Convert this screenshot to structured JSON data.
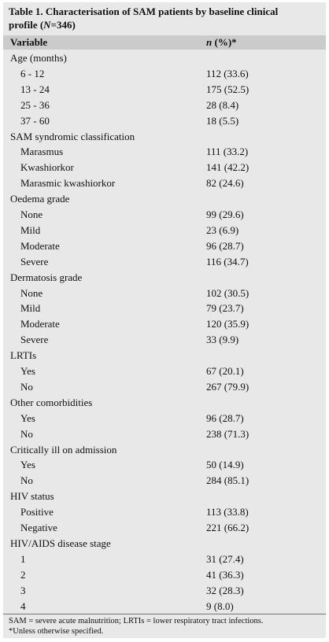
{
  "title": [
    "Table 1. Characterisation of SAM patients by baseline clinical profile (",
    "N",
    "=346)"
  ],
  "table": {
    "header": [
      [
        "Variable"
      ],
      [
        "n",
        " (%)*"
      ]
    ],
    "groups": [
      {
        "label": "Age (months)",
        "rows": [
          [
            "6 - 12",
            "112 (33.6)"
          ],
          [
            "13 - 24",
            "175 (52.5)"
          ],
          [
            "25 - 36",
            "28 (8.4)"
          ],
          [
            "37 - 60",
            "18 (5.5)"
          ]
        ]
      },
      {
        "label": "SAM syndromic classification",
        "rows": [
          [
            "Marasmus",
            "111 (33.2)"
          ],
          [
            "Kwashiorkor",
            "141 (42.2)"
          ],
          [
            "Marasmic kwashiorkor",
            "82 (24.6)"
          ]
        ]
      },
      {
        "label": "Oedema grade",
        "rows": [
          [
            "None",
            "99 (29.6)"
          ],
          [
            "Mild",
            "23 (6.9)"
          ],
          [
            "Moderate",
            "96 (28.7)"
          ],
          [
            "Severe",
            "116 (34.7)"
          ]
        ]
      },
      {
        "label": "Dermatosis grade",
        "rows": [
          [
            "None",
            "102 (30.5)"
          ],
          [
            "Mild",
            "79 (23.7)"
          ],
          [
            "Moderate",
            "120 (35.9)"
          ],
          [
            "Severe",
            "33 (9.9)"
          ]
        ]
      },
      {
        "label": "LRTIs",
        "rows": [
          [
            "Yes",
            "67 (20.1)"
          ],
          [
            "No",
            "267 (79.9)"
          ]
        ]
      },
      {
        "label": "Other comorbidities",
        "rows": [
          [
            "Yes",
            "96 (28.7)"
          ],
          [
            "No",
            "238 (71.3)"
          ]
        ]
      },
      {
        "label": "Critically ill on admission",
        "rows": [
          [
            "Yes",
            "50 (14.9)"
          ],
          [
            "No",
            "284 (85.1)"
          ]
        ]
      },
      {
        "label": "HIV status",
        "rows": [
          [
            "Positive",
            "113 (33.8)"
          ],
          [
            "Negative",
            "221 (66.2)"
          ]
        ]
      },
      {
        "label": "HIV/AIDS disease stage",
        "rows": [
          [
            "1",
            "31 (27.4)"
          ],
          [
            "2",
            "41 (36.3)"
          ],
          [
            "3",
            "32 (28.3)"
          ],
          [
            "4",
            "9 (8.0)"
          ]
        ]
      }
    ]
  },
  "footnotes": [
    "SAM = severe acute malnutrition; LRTIs = lower respiratory tract infections.",
    "*Unless otherwise specified."
  ]
}
